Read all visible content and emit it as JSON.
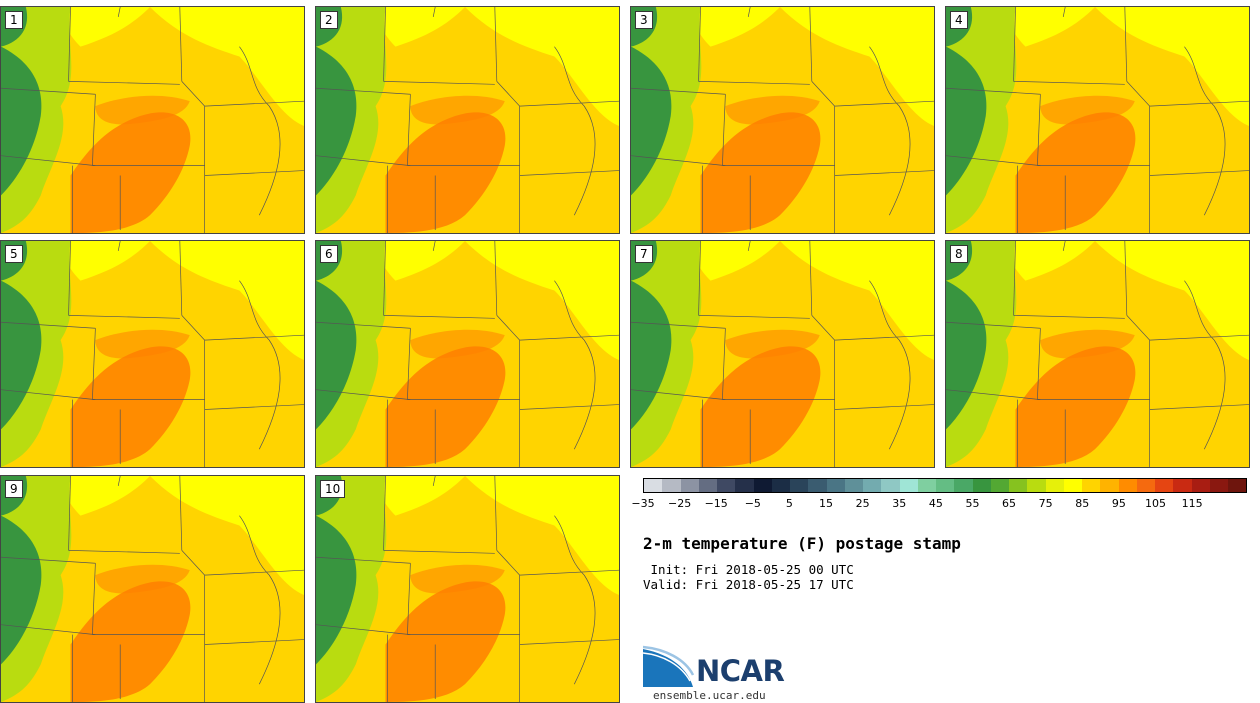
{
  "panels": [
    {
      "label": "1"
    },
    {
      "label": "2"
    },
    {
      "label": "3"
    },
    {
      "label": "4"
    },
    {
      "label": "5"
    },
    {
      "label": "6"
    },
    {
      "label": "7"
    },
    {
      "label": "8"
    },
    {
      "label": "9"
    },
    {
      "label": "10"
    }
  ],
  "colorbar": {
    "colors": [
      "#d9dde3",
      "#b5bac4",
      "#8c93a3",
      "#646d82",
      "#3f4963",
      "#25304a",
      "#0f1a33",
      "#1b2d45",
      "#2a445a",
      "#3a5c70",
      "#4a7585",
      "#5f9099",
      "#73abaf",
      "#8fc8c4",
      "#9fe5d6",
      "#7fcfa0",
      "#64bd84",
      "#4aa866",
      "#38953f",
      "#53a833",
      "#86c21f",
      "#b9dc10",
      "#e6f00a",
      "#ffff00",
      "#ffd400",
      "#ffb300",
      "#ff8c00",
      "#f56a0f",
      "#e54512",
      "#c92a12",
      "#a81d12",
      "#8a1810",
      "#6e150d"
    ],
    "ticks": [
      "−35",
      "−25",
      "−15",
      "−5",
      "5",
      "15",
      "25",
      "35",
      "45",
      "55",
      "65",
      "75",
      "85",
      "95",
      "105",
      "115"
    ],
    "colors_accent": {
      "hot": "#ff7f00",
      "warm": "#ffd400",
      "mild": "#ffff00",
      "cool": "#b9dc10",
      "terrain": "#38953f"
    }
  },
  "title": "2-m temperature (F) postage stamp",
  "init": " Init: Fri 2018-05-25 00 UTC",
  "valid": "Valid: Fri 2018-05-25 17 UTC",
  "logo": {
    "text": "NCAR",
    "icon": "ncar-logo-icon"
  },
  "site": "ensemble.ucar.edu"
}
